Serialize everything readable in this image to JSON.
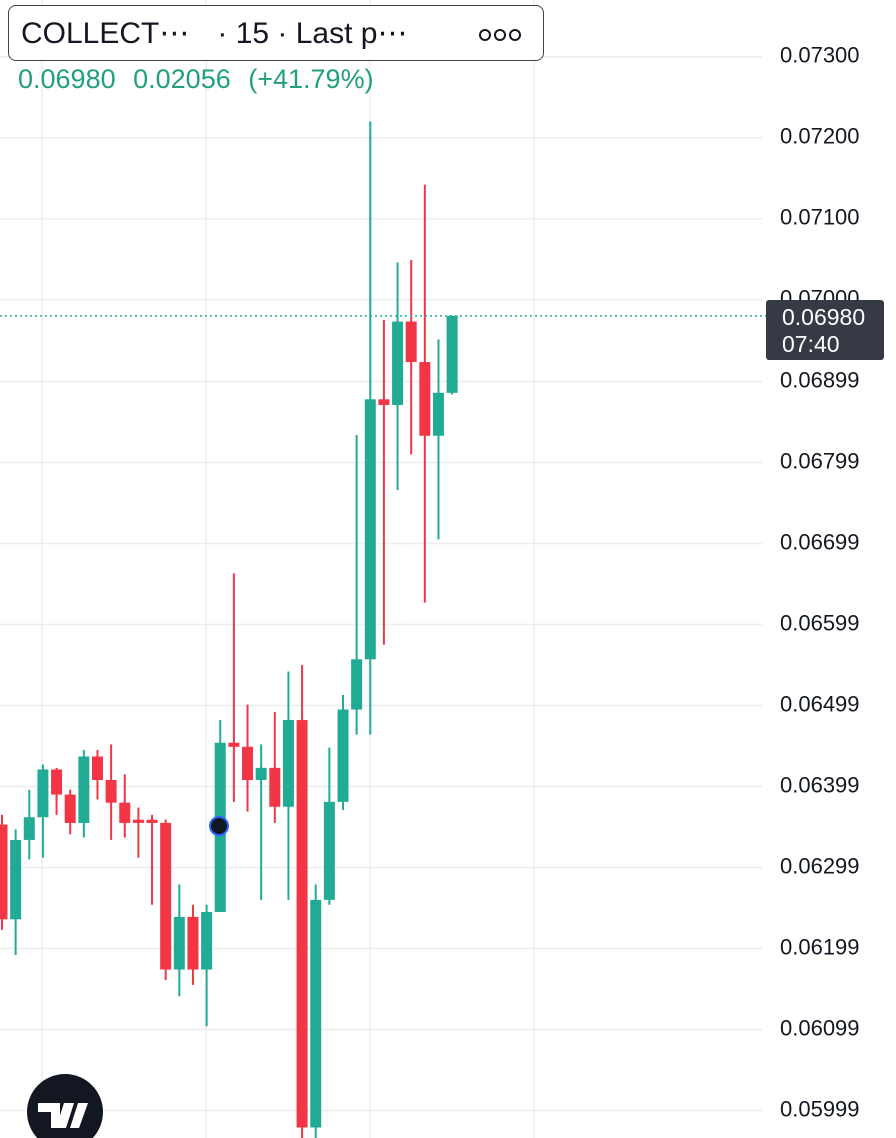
{
  "chart_data": {
    "type": "candlestick",
    "header": {
      "symbol": "COLLECT⋯",
      "interval": "· 15 · Last p⋯",
      "last": {
        "value": 0.0698,
        "label": "0.06980"
      },
      "change": 0.02056,
      "change_percent": "(+41.79%)"
    },
    "last_price": {
      "value": 0.0698,
      "label": "0.06980"
    },
    "countdown": "07:40",
    "up_color": "#22ab94",
    "down_color": "#f23645",
    "grid": true,
    "ylim": [
      0.05965,
      0.0737
    ],
    "yticks": [
      {
        "value": 0.073,
        "label": "0.07300"
      },
      {
        "value": 0.072,
        "label": "0.07200"
      },
      {
        "value": 0.071,
        "label": "0.07100"
      },
      {
        "value": 0.07,
        "label": "0.07000"
      },
      0.06899,
      0.06799,
      0.06699,
      0.06599,
      0.06499,
      0.06399,
      0.06299,
      0.06199,
      0.06099,
      0.05999
    ],
    "open": [
      0.06352,
      0.06235,
      0.06333,
      0.06361,
      0.0642,
      0.06389,
      0.06354,
      0.06436,
      0.06407,
      0.06379,
      0.06358,
      0.06358,
      0.06354,
      0.06173,
      0.06238,
      0.06173,
      0.06244,
      0.06453,
      0.06448,
      0.06407,
      0.06422,
      0.06374,
      0.06481,
      0.05978,
      0.06259,
      0.0638,
      0.06494,
      0.06556,
      0.06877,
      0.0687,
      0.06973,
      0.06923,
      0.06832,
      0.06885
    ],
    "high": [
      0.06364,
      0.06346,
      0.06395,
      0.06426,
      0.06422,
      0.06395,
      0.06444,
      0.06444,
      0.06451,
      0.06414,
      0.06373,
      0.06364,
      0.06358,
      0.06278,
      0.06253,
      0.06253,
      0.06481,
      0.06662,
      0.065,
      0.06451,
      0.06491,
      0.06541,
      0.06549,
      0.06278,
      0.06447,
      0.06512,
      0.06833,
      0.0722,
      0.06975,
      0.07046,
      0.07049,
      0.07142,
      0.06951,
      0.0698
    ],
    "low": [
      0.06222,
      0.06191,
      0.06309,
      0.06311,
      0.06364,
      0.0634,
      0.06336,
      0.06383,
      0.06333,
      0.06336,
      0.06311,
      0.06253,
      0.0616,
      0.0614,
      0.06154,
      0.06103,
      0.06244,
      0.0638,
      0.06368,
      0.06259,
      0.06354,
      0.06259,
      0.05965,
      0.05965,
      0.06253,
      0.0637,
      0.06463,
      0.06463,
      0.06574,
      0.06765,
      0.06809,
      0.06626,
      0.06704,
      0.06883
    ],
    "close": [
      0.06235,
      0.06333,
      0.06361,
      0.0642,
      0.06389,
      0.06354,
      0.06436,
      0.06407,
      0.06379,
      0.06354,
      0.06354,
      0.06354,
      0.06173,
      0.06238,
      0.06173,
      0.06244,
      0.06453,
      0.06448,
      0.06407,
      0.06422,
      0.06374,
      0.06481,
      0.05978,
      0.06259,
      0.0638,
      0.06494,
      0.06556,
      0.06877,
      0.0687,
      0.06973,
      0.06923,
      0.06832,
      0.06885,
      0.0698
    ]
  }
}
